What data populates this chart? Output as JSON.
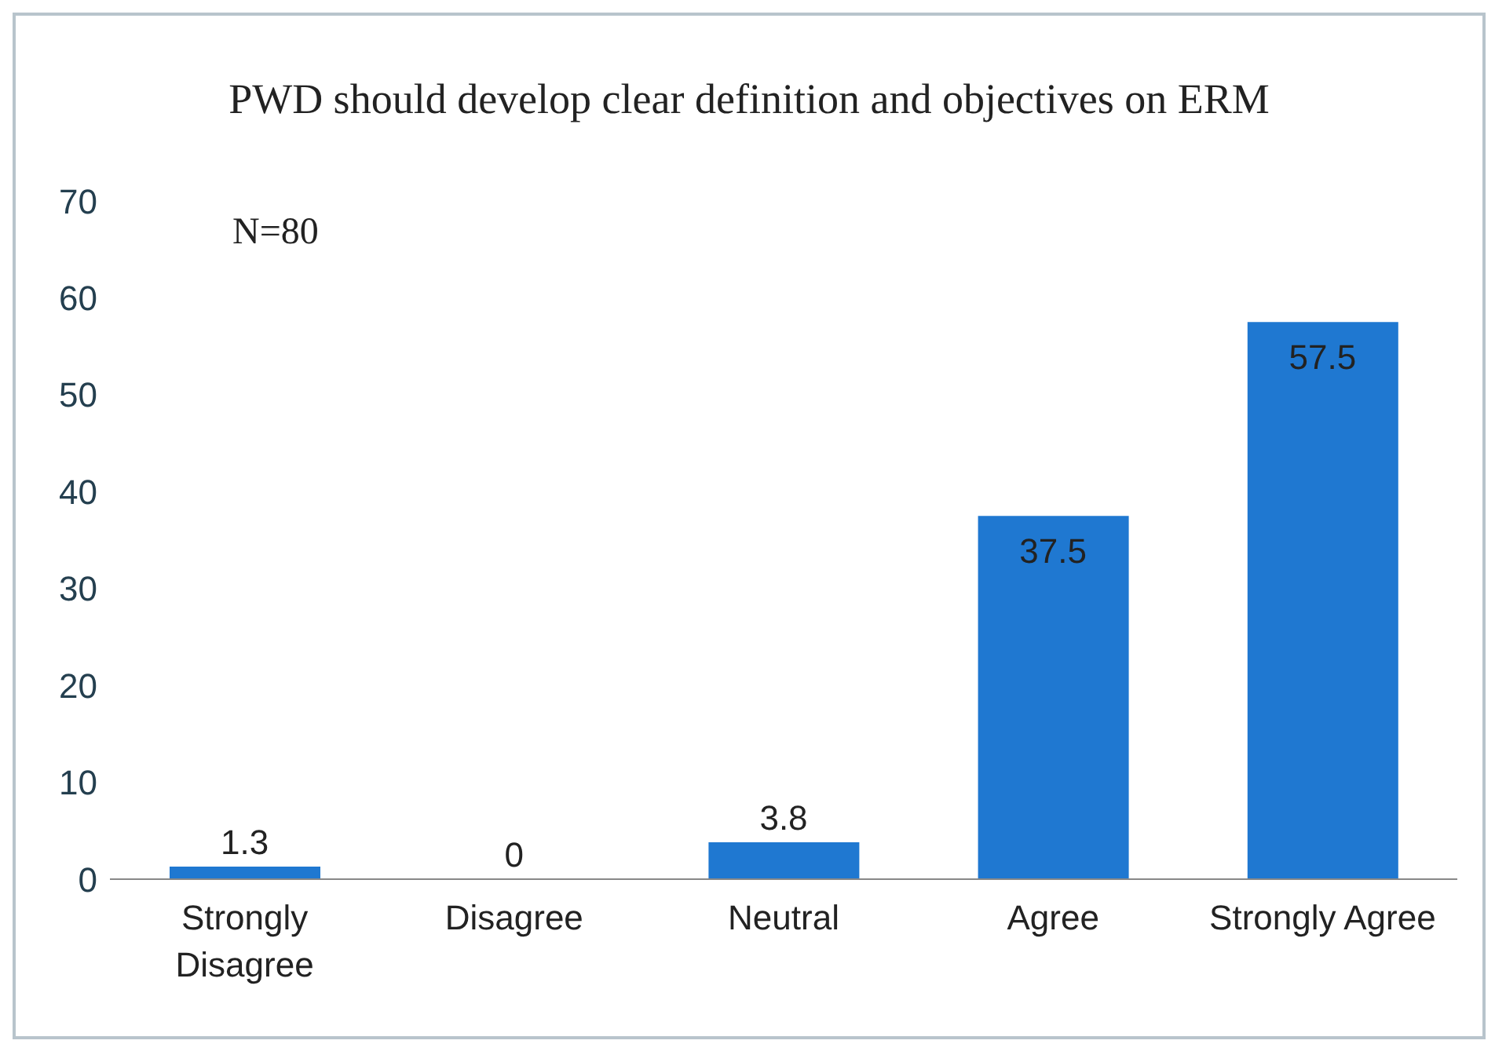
{
  "chart_data": {
    "type": "bar",
    "title": "PWD should develop clear definition and objectives on ERM",
    "categories": [
      "Strongly Disagree",
      "Disagree",
      "Neutral",
      "Agree",
      "Strongly Agree"
    ],
    "values": [
      1.3,
      0,
      3.8,
      37.5,
      57.5
    ],
    "color": "#1f78d1",
    "ylim": [
      0,
      70
    ],
    "yticks": [
      0,
      10,
      20,
      30,
      40,
      50,
      60,
      70
    ],
    "grid": false,
    "data_labels": true,
    "annotations": [
      "N=80"
    ]
  }
}
